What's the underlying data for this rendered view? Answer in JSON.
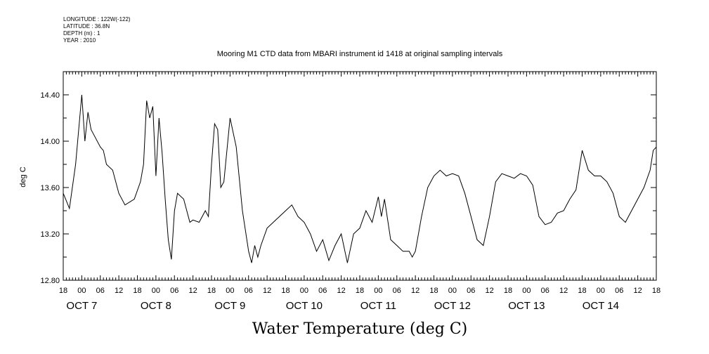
{
  "header": {
    "longitude": "LONGITUDE : 122W(-122)",
    "latitude": "LATITUDE : 36.8N",
    "depth": "DEPTH (m) : 1",
    "year": "YEAR : 2010"
  },
  "chart_data": {
    "type": "line",
    "title": "Mooring M1 CTD data from MBARI instrument id 1418 at original sampling intervals",
    "xlabel": "Water Temperature (deg C)",
    "ylabel": "deg C",
    "ylim": [
      12.8,
      14.6
    ],
    "yticks": [
      "12.80",
      "13.20",
      "13.60",
      "14.00",
      "14.40"
    ],
    "xlim_hours_labels": "Oct 6 18:00 to Oct 14 18:00",
    "hour_ticks": [
      "18",
      "00",
      "06",
      "12",
      "18",
      "00",
      "06",
      "12",
      "18",
      "00",
      "06",
      "12",
      "18",
      "00",
      "06",
      "12",
      "18",
      "00",
      "06",
      "12",
      "18",
      "00",
      "06",
      "12",
      "18",
      "00",
      "06",
      "12",
      "18",
      "00",
      "06",
      "12",
      "18"
    ],
    "day_labels": [
      "OCT  7",
      "OCT  8",
      "OCT  9",
      "OCT 10",
      "OCT 11",
      "OCT 12",
      "OCT 13",
      "OCT 14"
    ],
    "grid": false,
    "series": [
      {
        "x": [
          "2010-10-06 18:00",
          "2010-10-06 20:00",
          "2010-10-06 22:00",
          "2010-10-06 23:00",
          "2010-10-07 00:00",
          "2010-10-07 01:00",
          "2010-10-07 02:00",
          "2010-10-07 03:00",
          "2010-10-07 04:00",
          "2010-10-07 06:00",
          "2010-10-07 07:00",
          "2010-10-07 08:00",
          "2010-10-07 10:00",
          "2010-10-07 12:00",
          "2010-10-07 14:00",
          "2010-10-07 17:00",
          "2010-10-07 19:00",
          "2010-10-07 20:00",
          "2010-10-07 21:00",
          "2010-10-07 22:00",
          "2010-10-07 23:00",
          "2010-10-08 00:00",
          "2010-10-08 01:00",
          "2010-10-08 02:00",
          "2010-10-08 03:00",
          "2010-10-08 04:00",
          "2010-10-08 05:00",
          "2010-10-08 06:00",
          "2010-10-08 07:00",
          "2010-10-08 09:00",
          "2010-10-08 11:00",
          "2010-10-08 12:00",
          "2010-10-08 14:00",
          "2010-10-08 16:00",
          "2010-10-08 17:00",
          "2010-10-08 18:00",
          "2010-10-08 19:00",
          "2010-10-08 20:00",
          "2010-10-08 21:00",
          "2010-10-08 22:00",
          "2010-10-09 00:00",
          "2010-10-09 02:00",
          "2010-10-09 04:00",
          "2010-10-09 06:00",
          "2010-10-09 07:00",
          "2010-10-09 08:00",
          "2010-10-09 09:00",
          "2010-10-09 10:00",
          "2010-10-09 12:00",
          "2010-10-09 14:00",
          "2010-10-09 16:00",
          "2010-10-09 18:00",
          "2010-10-09 20:00",
          "2010-10-09 22:00",
          "2010-10-10 00:00",
          "2010-10-10 02:00",
          "2010-10-10 04:00",
          "2010-10-10 06:00",
          "2010-10-10 08:00",
          "2010-10-10 10:00",
          "2010-10-10 12:00",
          "2010-10-10 14:00",
          "2010-10-10 16:00",
          "2010-10-10 18:00",
          "2010-10-10 20:00",
          "2010-10-10 22:00",
          "2010-10-11 00:00",
          "2010-10-11 01:00",
          "2010-10-11 02:00",
          "2010-10-11 04:00",
          "2010-10-11 06:00",
          "2010-10-11 08:00",
          "2010-10-11 10:00",
          "2010-10-11 11:00",
          "2010-10-11 12:00",
          "2010-10-11 14:00",
          "2010-10-11 16:00",
          "2010-10-11 18:00",
          "2010-10-11 20:00",
          "2010-10-11 22:00",
          "2010-10-12 00:00",
          "2010-10-12 02:00",
          "2010-10-12 04:00",
          "2010-10-12 06:00",
          "2010-10-12 08:00",
          "2010-10-12 10:00",
          "2010-10-12 12:00",
          "2010-10-12 14:00",
          "2010-10-12 16:00",
          "2010-10-12 18:00",
          "2010-10-12 20:00",
          "2010-10-12 22:00",
          "2010-10-13 00:00",
          "2010-10-13 02:00",
          "2010-10-13 04:00",
          "2010-10-13 06:00",
          "2010-10-13 08:00",
          "2010-10-13 10:00",
          "2010-10-13 12:00",
          "2010-10-13 14:00",
          "2010-10-13 16:00",
          "2010-10-13 18:00",
          "2010-10-13 20:00",
          "2010-10-13 22:00",
          "2010-10-14 00:00",
          "2010-10-14 02:00",
          "2010-10-14 04:00",
          "2010-10-14 06:00",
          "2010-10-14 08:00",
          "2010-10-14 10:00",
          "2010-10-14 12:00",
          "2010-10-14 14:00",
          "2010-10-14 16:00",
          "2010-10-14 17:00",
          "2010-10-14 18:00"
        ],
        "y": [
          13.55,
          13.42,
          13.8,
          14.1,
          14.4,
          14.0,
          14.25,
          14.1,
          14.05,
          13.95,
          13.92,
          13.8,
          13.75,
          13.55,
          13.45,
          13.5,
          13.65,
          13.8,
          14.35,
          14.2,
          14.3,
          13.7,
          14.2,
          13.9,
          13.5,
          13.15,
          12.98,
          13.4,
          13.55,
          13.5,
          13.3,
          13.32,
          13.3,
          13.4,
          13.35,
          13.8,
          14.15,
          14.1,
          13.6,
          13.65,
          14.2,
          13.95,
          13.4,
          13.05,
          12.95,
          13.1,
          13.0,
          13.1,
          13.25,
          13.3,
          13.35,
          13.4,
          13.45,
          13.35,
          13.3,
          13.2,
          13.05,
          13.15,
          12.97,
          13.1,
          13.2,
          12.95,
          13.2,
          13.25,
          13.4,
          13.3,
          13.52,
          13.35,
          13.5,
          13.15,
          13.1,
          13.05,
          13.05,
          13.0,
          13.05,
          13.35,
          13.6,
          13.7,
          13.75,
          13.7,
          13.72,
          13.7,
          13.55,
          13.35,
          13.15,
          13.1,
          13.35,
          13.65,
          13.72,
          13.7,
          13.68,
          13.72,
          13.7,
          13.62,
          13.35,
          13.28,
          13.3,
          13.38,
          13.4,
          13.5,
          13.58,
          13.92,
          13.75,
          13.7,
          13.7,
          13.65,
          13.55,
          13.35,
          13.3,
          13.4,
          13.5,
          13.6,
          13.75,
          13.92,
          13.95
        ]
      }
    ]
  }
}
